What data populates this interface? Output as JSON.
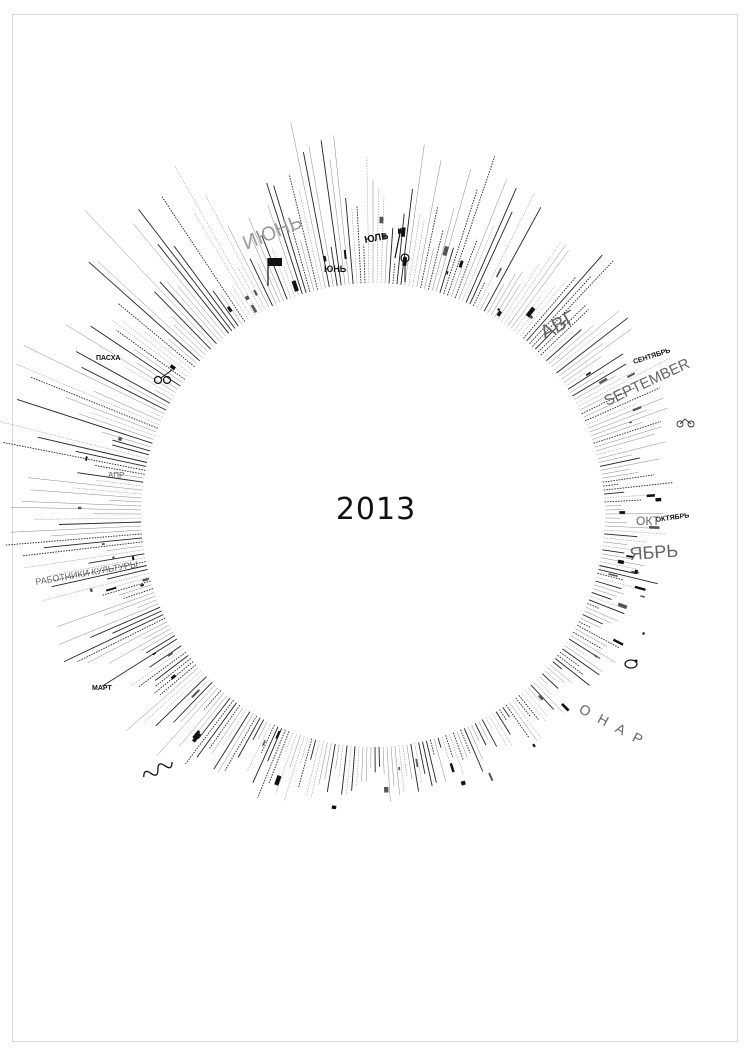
{
  "poster": {
    "year": "2013",
    "signature": "",
    "ink_color": "#111111",
    "background_color": "#ffffff"
  },
  "month_labels": {
    "june": "ИЮНЬ",
    "june_small": "ЮНЬ",
    "july": "ЮЛЬ",
    "august": "АВГ",
    "september": "СЕНТЯБРЬ",
    "september_en": "SEPTEMBER",
    "october": "ОКТЯБРЬ",
    "october_short": "ОКТ",
    "november": "ЯБРЬ",
    "december": "ОНАР",
    "march": "МАРТ",
    "april": "АПР",
    "easter": "ПАСХА",
    "culture": "РАБОТНИКИ КУЛЬТУРЫ"
  },
  "icons": [
    "sun-rays-icon",
    "flag-icon",
    "balloon-icon",
    "scissors-icon",
    "wave-icon",
    "chicken-icon",
    "bicycle-icon"
  ]
}
